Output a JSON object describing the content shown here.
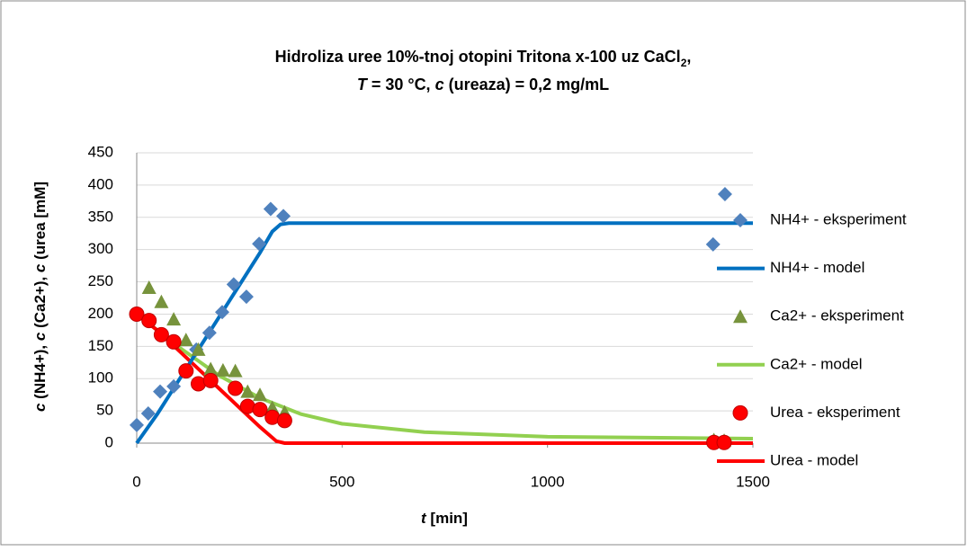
{
  "chart_data": {
    "type": "scatter",
    "title": [
      [
        {
          "text": "Hidroliza uree 10%-tnoj otopini Tritona x-100 uz CaCl"
        },
        {
          "text": "2",
          "sub": true
        },
        {
          "text": ","
        }
      ],
      [
        {
          "text": "T",
          "italic": true
        },
        {
          "text": " = 30 °C, "
        },
        {
          "text": "c",
          "italic": true
        },
        {
          "text": " (ureaza) = 0,2 mg/mL"
        }
      ]
    ],
    "x_label": [
      {
        "text": "t",
        "italic": true
      },
      {
        "text": " [min]"
      }
    ],
    "y_label": [
      {
        "text": "c",
        "italic": true
      },
      {
        "text": " (NH4+), "
      },
      {
        "text": "c",
        "italic": true
      },
      {
        "text": " (Ca2+), "
      },
      {
        "text": "c",
        "italic": true
      },
      {
        "text": " (urea [mM]"
      }
    ],
    "xlim": [
      0,
      1500
    ],
    "xticks": [
      0,
      500,
      1000,
      1500
    ],
    "ylim": [
      0,
      450
    ],
    "yticks": [
      0,
      50,
      100,
      150,
      200,
      250,
      300,
      350,
      400,
      450
    ],
    "grid": true,
    "legend": "right",
    "series": [
      {
        "name": "NH4+ - eksperiment",
        "color": "#4f81bd",
        "mode": "markers",
        "marker": "diamond",
        "x": [
          0,
          28,
          57,
          90,
          145,
          177,
          208,
          236,
          267,
          298,
          326,
          357,
          1403,
          1432
        ],
        "values": [
          28,
          46,
          80,
          88,
          145,
          171,
          203,
          246,
          227,
          309,
          363,
          352,
          308,
          386
        ]
      },
      {
        "name": "NH4+ - model",
        "color": "#0070c0",
        "mode": "line",
        "x": [
          0,
          50,
          100,
          150,
          200,
          250,
          300,
          330,
          350,
          370,
          1500
        ],
        "values": [
          0,
          45,
          95,
          145,
          195,
          245,
          295,
          328,
          339,
          341,
          341
        ]
      },
      {
        "name": "Ca2+ - eksperiment",
        "color": "#77933c",
        "mode": "markers",
        "marker": "triangle",
        "x": [
          30,
          60,
          90,
          120,
          150,
          180,
          210,
          240,
          270,
          300,
          330,
          360,
          1405,
          1430
        ],
        "values": [
          241,
          219,
          192,
          160,
          145,
          115,
          113,
          112,
          80,
          75,
          55,
          48,
          5,
          4
        ]
      },
      {
        "name": "Ca2+ - model",
        "color": "#92d050",
        "mode": "line",
        "x": [
          0,
          100,
          200,
          300,
          400,
          500,
          700,
          1000,
          1500
        ],
        "values": [
          200,
          150,
          105,
          70,
          45,
          30,
          17,
          10,
          7
        ]
      },
      {
        "name": "Urea - eksperiment",
        "color": "#ff0000",
        "mode": "markers",
        "marker": "circle",
        "x": [
          0,
          30,
          60,
          90,
          120,
          150,
          180,
          240,
          270,
          300,
          330,
          360,
          1405,
          1430
        ],
        "values": [
          200,
          190,
          168,
          157,
          112,
          92,
          97,
          85,
          57,
          52,
          40,
          35,
          1,
          1
        ]
      },
      {
        "name": "Urea - model",
        "color": "#ff0000",
        "mode": "line",
        "x": [
          0,
          50,
          100,
          150,
          200,
          250,
          300,
          340,
          360,
          1500
        ],
        "values": [
          200,
          175,
          145,
          115,
          85,
          55,
          25,
          3,
          0,
          0
        ]
      }
    ]
  }
}
